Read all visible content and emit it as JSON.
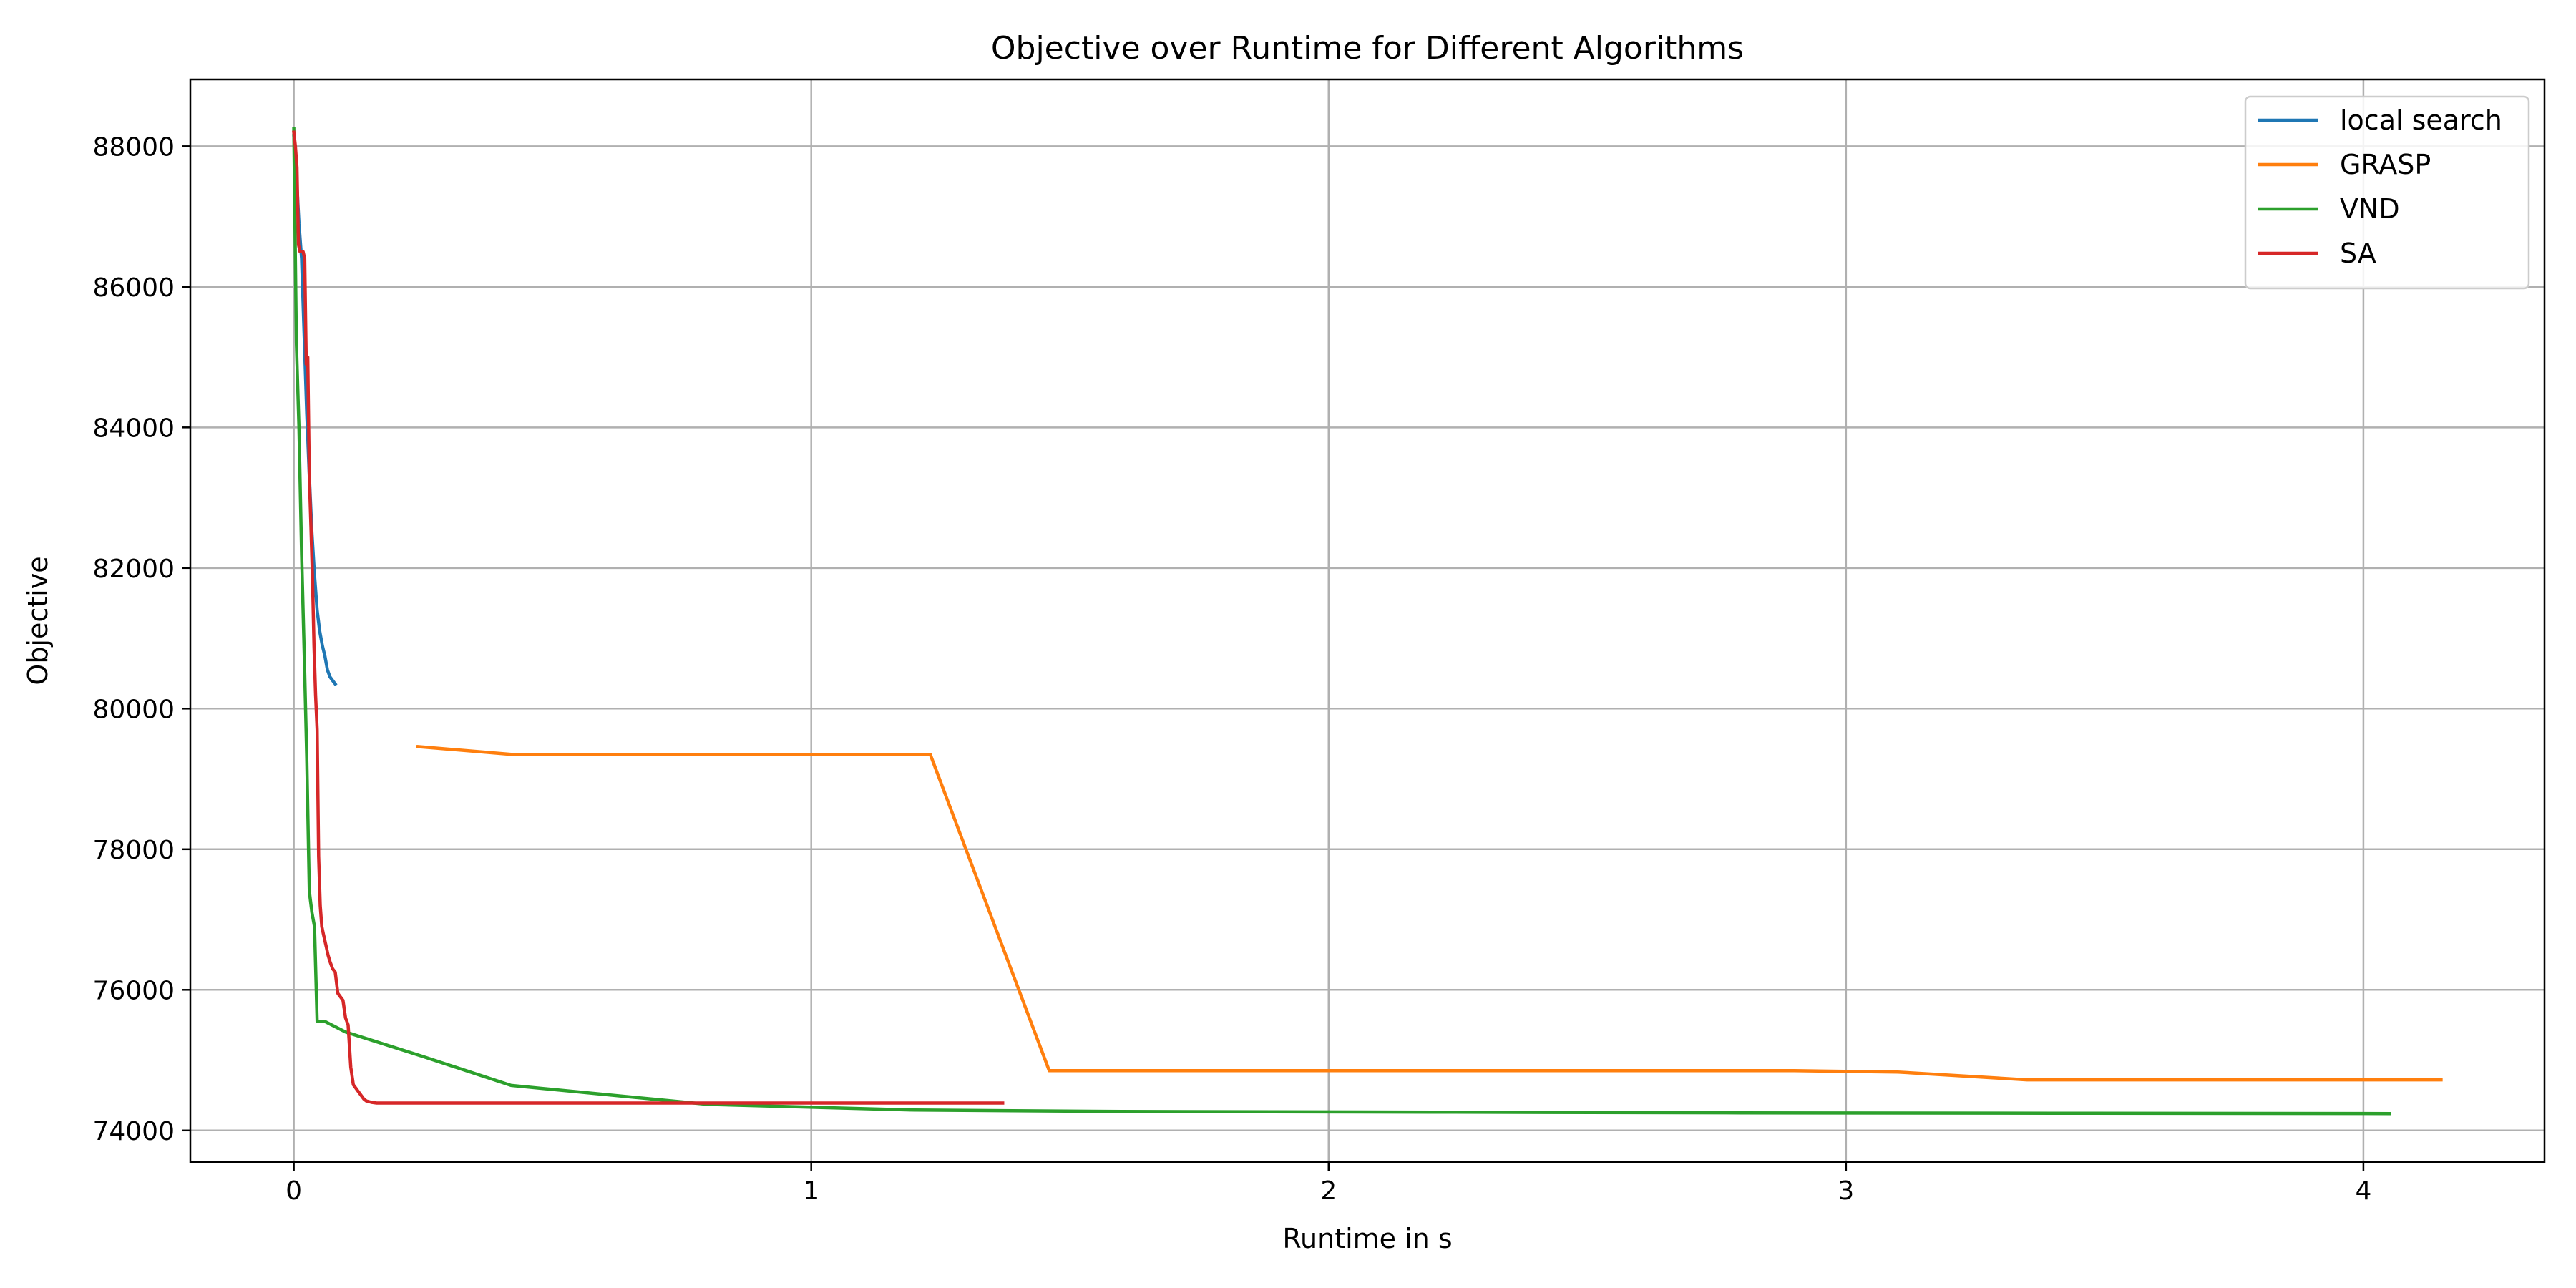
{
  "chart_data": {
    "type": "line",
    "title": "Objective over Runtime for Different Algorithms",
    "xlabel": "Runtime in s",
    "ylabel": "Objective",
    "xlim": [
      -0.2,
      4.35
    ],
    "ylim": [
      73550,
      88950
    ],
    "xticks": [
      0,
      1,
      2,
      3,
      4
    ],
    "yticks": [
      74000,
      76000,
      78000,
      80000,
      82000,
      84000,
      86000,
      88000
    ],
    "grid": true,
    "legend_position": "top-right",
    "series": [
      {
        "name": "local search",
        "color": "#1f77b4",
        "x": [
          0.0,
          0.005,
          0.01,
          0.015,
          0.02,
          0.025,
          0.03,
          0.035,
          0.04,
          0.045,
          0.05,
          0.055,
          0.06,
          0.065,
          0.07,
          0.075,
          0.08
        ],
        "y": [
          88150,
          87600,
          86900,
          86400,
          85300,
          84200,
          83300,
          82500,
          81900,
          81400,
          81100,
          80900,
          80750,
          80550,
          80450,
          80400,
          80350
        ]
      },
      {
        "name": "GRASP",
        "color": "#ff7f0e",
        "x": [
          0.24,
          0.42,
          1.23,
          1.46,
          2.9,
          3.1,
          3.35,
          4.15
        ],
        "y": [
          79460,
          79350,
          79350,
          74850,
          74850,
          74830,
          74720,
          74720
        ]
      },
      {
        "name": "VND",
        "color": "#2ca02c",
        "x": [
          0.0,
          0.005,
          0.01,
          0.015,
          0.02,
          0.025,
          0.03,
          0.035,
          0.04,
          0.045,
          0.05,
          0.06,
          0.1,
          0.25,
          0.42,
          0.8,
          1.2,
          1.6,
          2.2,
          2.8,
          3.4,
          4.05
        ],
        "y": [
          88250,
          85200,
          84000,
          82200,
          80800,
          79300,
          77400,
          77100,
          76900,
          75550,
          75550,
          75550,
          75400,
          75050,
          74640,
          74370,
          74290,
          74270,
          74260,
          74250,
          74245,
          74240
        ]
      },
      {
        "name": "SA",
        "color": "#d62728",
        "x": [
          0.0,
          0.003,
          0.006,
          0.009,
          0.012,
          0.015,
          0.018,
          0.021,
          0.024,
          0.027,
          0.03,
          0.033,
          0.036,
          0.039,
          0.042,
          0.045,
          0.048,
          0.051,
          0.054,
          0.057,
          0.06,
          0.063,
          0.066,
          0.07,
          0.075,
          0.08,
          0.085,
          0.09,
          0.095,
          0.1,
          0.105,
          0.11,
          0.115,
          0.12,
          0.125,
          0.13,
          0.135,
          0.14,
          0.15,
          0.16,
          0.2,
          0.4,
          0.8,
          1.37
        ],
        "y": [
          88200,
          88000,
          87700,
          86600,
          86500,
          86500,
          86500,
          86400,
          84900,
          85000,
          83300,
          82600,
          81900,
          80900,
          80200,
          79700,
          77900,
          77200,
          76900,
          76800,
          76700,
          76600,
          76500,
          76400,
          76300,
          76250,
          75950,
          75900,
          75850,
          75600,
          75500,
          74900,
          74650,
          74600,
          74550,
          74500,
          74450,
          74420,
          74400,
          74390,
          74390,
          74390,
          74390,
          74390
        ]
      }
    ]
  }
}
